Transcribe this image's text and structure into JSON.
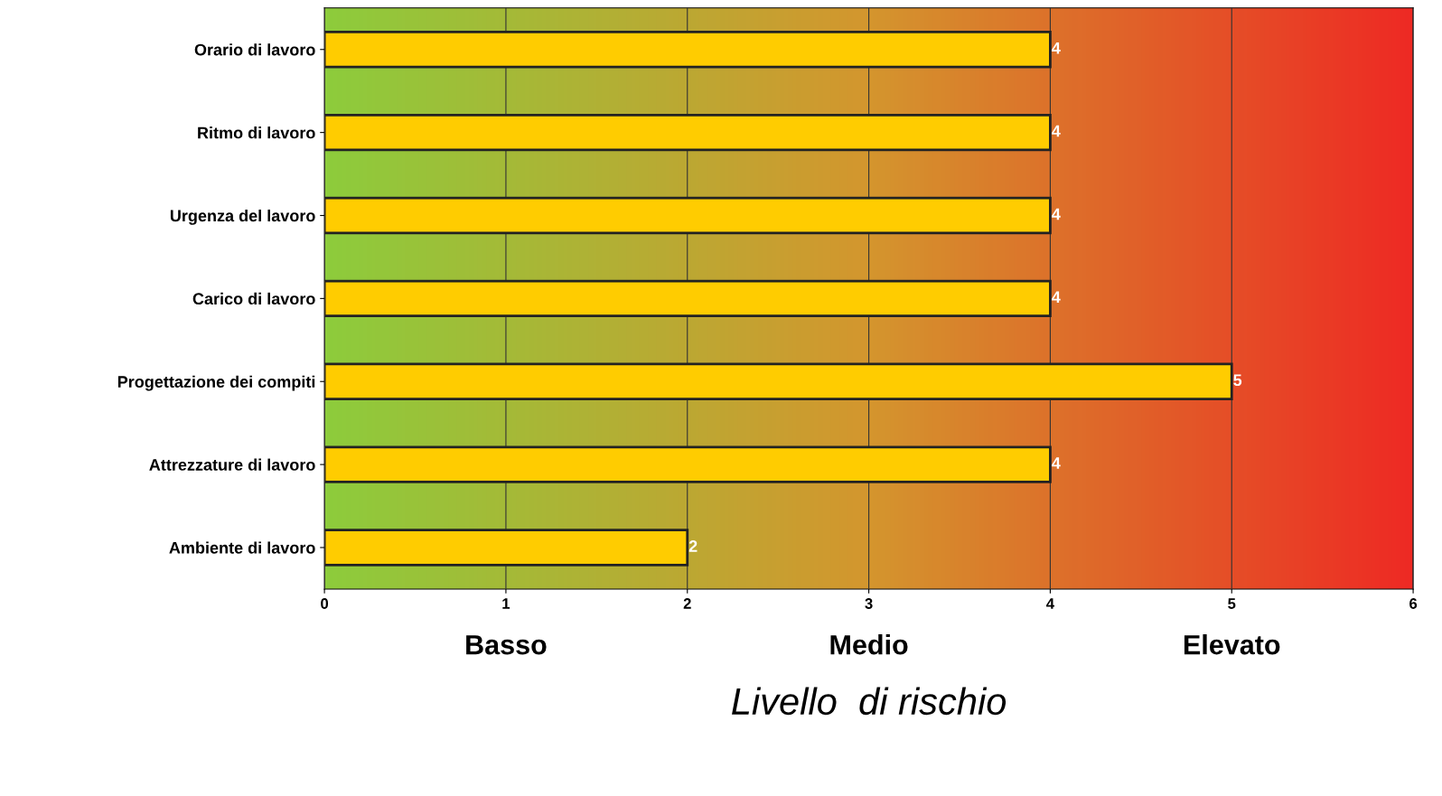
{
  "chart_data": {
    "type": "bar",
    "orientation": "horizontal",
    "xlabel": "Livello  di rischio",
    "categories": [
      "Orario di lavoro",
      "Ritmo di lavoro",
      "Urgenza del lavoro",
      "Carico di lavoro",
      "Progettazione dei compiti",
      "Attrezzature di lavoro",
      "Ambiente di lavoro"
    ],
    "values": [
      4,
      4,
      4,
      4,
      5,
      4,
      2
    ],
    "color": "#ffcc00",
    "data_labels": true,
    "xlim": [
      0,
      6
    ],
    "xticks": [
      0,
      1,
      2,
      3,
      4,
      5,
      6
    ],
    "grid": "x",
    "annotations": [
      "Basso",
      "Medio",
      "Elevato"
    ]
  }
}
